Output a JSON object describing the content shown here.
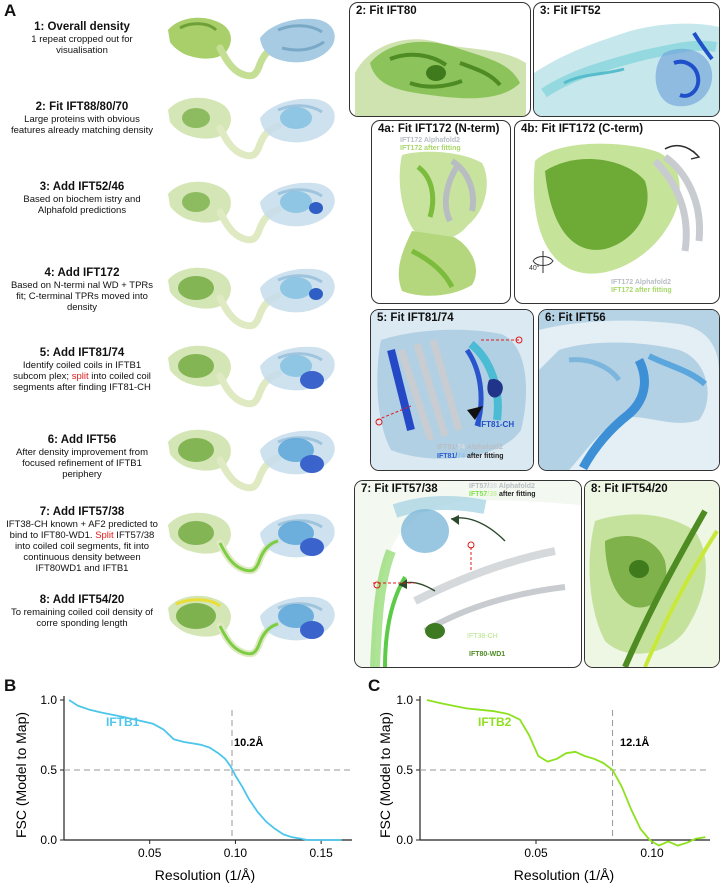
{
  "panel_labels": {
    "a": "A",
    "b": "B",
    "c": "C"
  },
  "steps": [
    {
      "title": "1: Overall density",
      "desc": "1 repeat cropped out for visualisation"
    },
    {
      "title": "2: Fit IFT88/80/70",
      "desc": "Large proteins with obvious features already matching density"
    },
    {
      "title": "3: Add IFT52/46",
      "desc": "Based on biochem istry and Alphafold predictions"
    },
    {
      "title": "4: Add IFT172",
      "desc": "Based on N-termi nal WD + TPRs fit; C-terminal TPRs moved into density"
    },
    {
      "title": "5: Add IFT81/74",
      "desc_a": "Identify coiled coils in IFTB1 subcom plex; ",
      "desc_red": "split",
      "desc_b": " into coiled coil segments after finding IFT81-CH"
    },
    {
      "title": "6: Add IFT56",
      "desc": "After density improvement from focused refinement of IFTB1 periphery"
    },
    {
      "title": "7: Add IFT57/38",
      "desc_a": "IFT38-CH known + AF2 predicted to bind to IFT80-WD1. ",
      "desc_red": "Split",
      "desc_b": " IFT57/38 into coiled coil segments, fit into continuous density between IFT80WD1 and IFTB1"
    },
    {
      "title": "8: Add IFT54/20",
      "desc": "To remaining coiled coil density of corre sponding length"
    }
  ],
  "boxes": {
    "fit80": "2: Fit IFT80",
    "fit52": "3: Fit IFT52",
    "fit172n": "4a: Fit IFT172 (N-term)",
    "fit172c": "4b: Fit IFT172 (C-term)",
    "fit8174": "5: Fit IFT81/74",
    "fit56": "6: Fit IFT56",
    "fit5738": "7: Fit IFT57/38",
    "fit5420": "8: Fit IFT54/20"
  },
  "box_labels": {
    "b4a_l1": "IFT172 Alphafold2",
    "b4a_l2": "IFT172 after fitting",
    "b4b_l1": "IFT172 Alphafold2",
    "b4b_l2": "IFT172 after fitting",
    "b4b_angle": "40°",
    "b5_ch": "IFT81-CH",
    "b5_af_a": "IFT81/",
    "b5_af_b": "74",
    "b5_af_c": " Alphafold2",
    "b5_fit_a": "IFT81/",
    "b5_fit_b": "74",
    "b5_fit_c": " after fitting",
    "b7_af_a": "IFT57/",
    "b7_af_b": "38",
    "b7_af_c": " Alphafold2",
    "b7_fit_a": "IFT57",
    "b7_fit_b": "/38",
    "b7_fit_c": " after fitting",
    "b7_ch": "IFT38-CH",
    "b7_wd": "IFT80-WD1"
  },
  "colors": {
    "iftb1": "#4cc6ea",
    "iftb2": "#8de11e",
    "cyan_density": "#a9d6ea",
    "green_density": "#8ec25a",
    "red": "#e01b1b",
    "dark_blue": "#1f4fc9"
  },
  "chart_data": [
    {
      "type": "line",
      "title": "",
      "xlabel": "Resolution (1/Å)",
      "ylabel": "FSC (Model to Map)",
      "xlim": [
        0.0,
        0.168
      ],
      "ylim": [
        0.0,
        1.0
      ],
      "xticks": [
        "0.05",
        "0.10",
        "0.15"
      ],
      "xtick_values": [
        0.05,
        0.1,
        0.15
      ],
      "yticks": [
        "0.0",
        "0.5",
        "1.0"
      ],
      "ytick_values": [
        0.0,
        0.5,
        1.0
      ],
      "threshold": 0.5,
      "cutoff_x": 0.098,
      "cutoff_label": "10.2Å",
      "series": [
        {
          "name": "IFTB1",
          "color": "#4cc6ea",
          "x": [
            0.003,
            0.008,
            0.015,
            0.022,
            0.03,
            0.038,
            0.045,
            0.052,
            0.058,
            0.064,
            0.07,
            0.075,
            0.08,
            0.085,
            0.09,
            0.094,
            0.097,
            0.1,
            0.104,
            0.108,
            0.113,
            0.118,
            0.123,
            0.128,
            0.133,
            0.138,
            0.142,
            0.146,
            0.15,
            0.156,
            0.162
          ],
          "y": [
            1.0,
            0.96,
            0.93,
            0.91,
            0.89,
            0.87,
            0.85,
            0.83,
            0.79,
            0.72,
            0.7,
            0.69,
            0.68,
            0.66,
            0.62,
            0.58,
            0.53,
            0.46,
            0.38,
            0.29,
            0.2,
            0.13,
            0.08,
            0.04,
            0.02,
            0.01,
            0.0,
            0.0,
            0.0,
            0.0,
            0.0
          ]
        }
      ]
    },
    {
      "type": "line",
      "title": "",
      "xlabel": "Resolution (1/Å)",
      "ylabel": "FSC (Model to Map)",
      "xlim": [
        0.0,
        0.125
      ],
      "ylim": [
        0.0,
        1.0
      ],
      "xticks": [
        "0.05",
        "0.10"
      ],
      "xtick_values": [
        0.05,
        0.1
      ],
      "yticks": [
        "0.0",
        "0.5",
        "1.0"
      ],
      "ytick_values": [
        0.0,
        0.5,
        1.0
      ],
      "threshold": 0.5,
      "cutoff_x": 0.083,
      "cutoff_label": "12.1Å",
      "series": [
        {
          "name": "IFTB2",
          "color": "#8de11e",
          "x": [
            0.003,
            0.008,
            0.014,
            0.02,
            0.026,
            0.032,
            0.038,
            0.043,
            0.047,
            0.051,
            0.055,
            0.059,
            0.063,
            0.067,
            0.071,
            0.075,
            0.079,
            0.083,
            0.087,
            0.091,
            0.095,
            0.099,
            0.103,
            0.107,
            0.111,
            0.115,
            0.119,
            0.123
          ],
          "y": [
            1.0,
            0.98,
            0.96,
            0.94,
            0.93,
            0.92,
            0.9,
            0.86,
            0.75,
            0.6,
            0.56,
            0.58,
            0.62,
            0.63,
            0.6,
            0.58,
            0.55,
            0.5,
            0.38,
            0.22,
            0.08,
            0.0,
            -0.04,
            -0.01,
            -0.04,
            -0.02,
            0.01,
            0.02
          ]
        }
      ]
    }
  ]
}
